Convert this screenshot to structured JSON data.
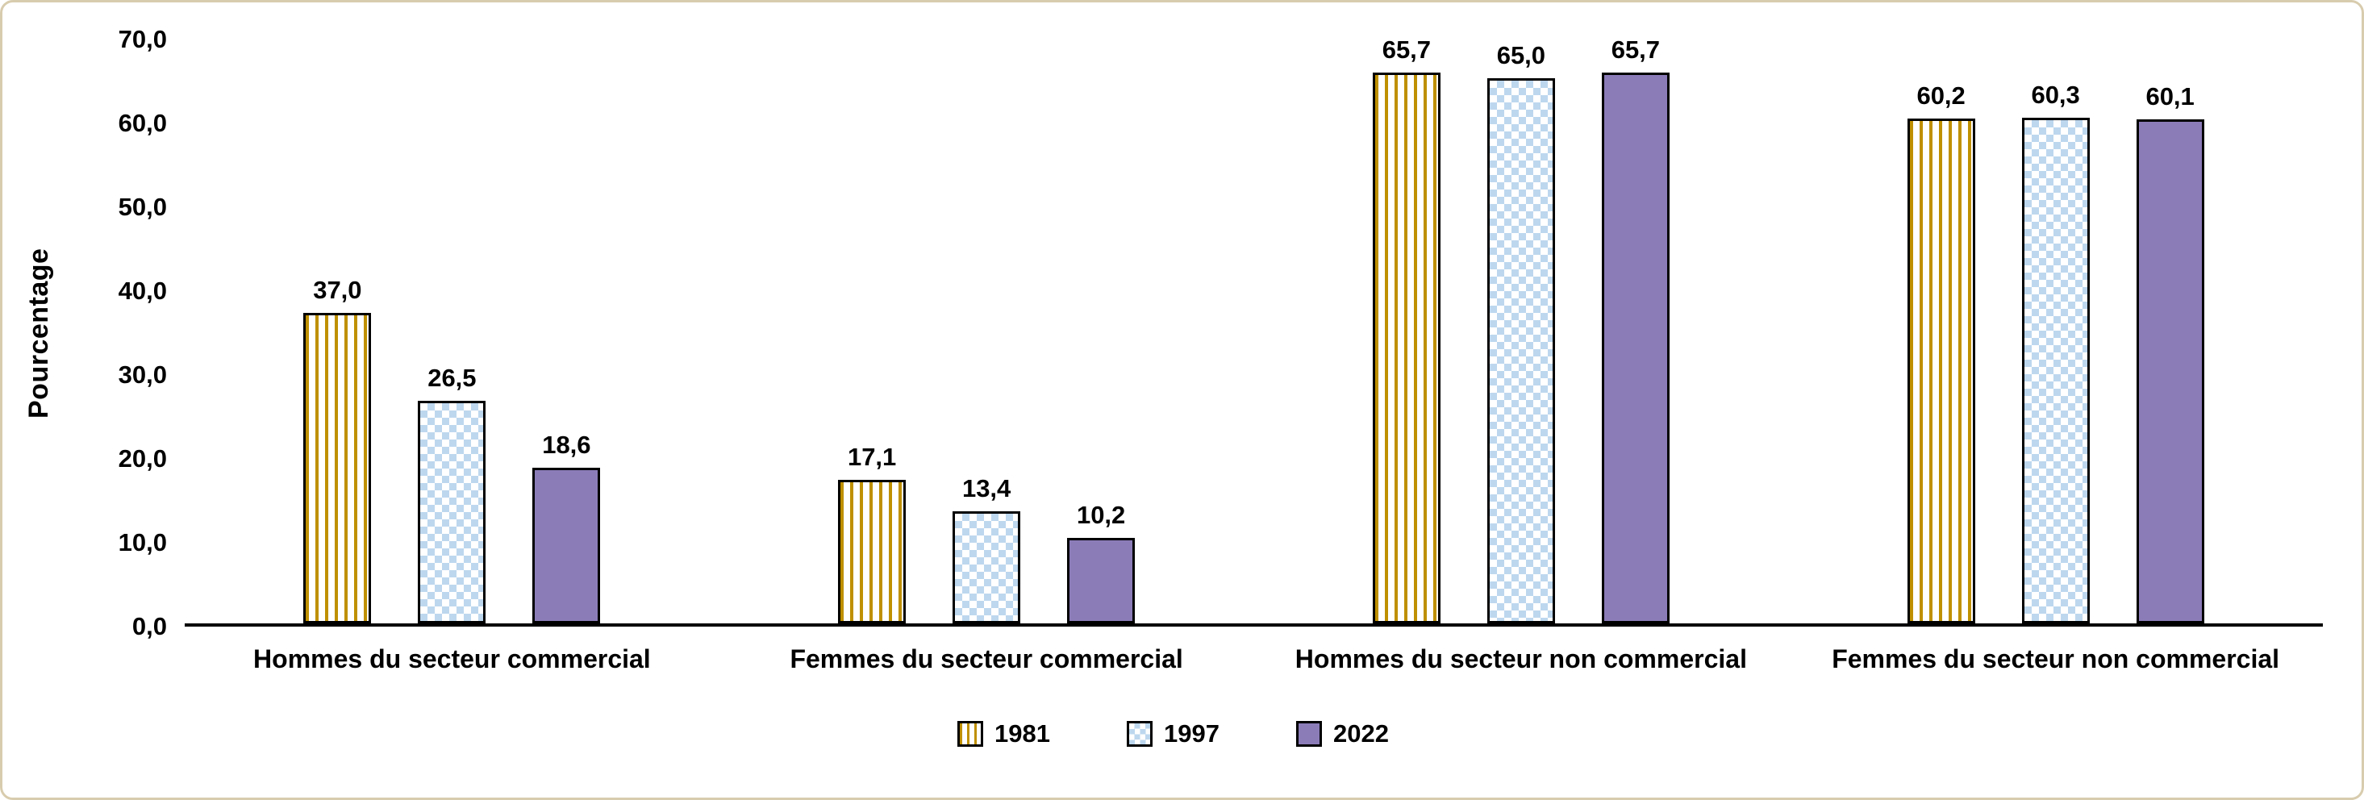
{
  "chart_data": {
    "type": "bar",
    "title": "",
    "xlabel": "",
    "ylabel": "Pourcentage",
    "ylim": [
      0,
      70
    ],
    "grid": false,
    "legend_position": "bottom",
    "decimal_separator": ",",
    "yticks": [
      {
        "value": 0,
        "label": "0,0"
      },
      {
        "value": 10,
        "label": "10,0"
      },
      {
        "value": 20,
        "label": "20,0"
      },
      {
        "value": 30,
        "label": "30,0"
      },
      {
        "value": 40,
        "label": "40,0"
      },
      {
        "value": 50,
        "label": "50,0"
      },
      {
        "value": 60,
        "label": "60,0"
      },
      {
        "value": 70,
        "label": "70,0"
      }
    ],
    "categories": [
      "Hommes du secteur commercial",
      "Femmes du secteur commercial",
      "Hommes du secteur non commercial",
      "Femmes du secteur non commercial"
    ],
    "series": [
      {
        "name": "1981",
        "pattern": "vertical-stripes",
        "color": "#BF9000",
        "values": [
          37.0,
          17.1,
          65.7,
          60.2
        ],
        "labels": [
          "37,0",
          "17,1",
          "65,7",
          "60,2"
        ]
      },
      {
        "name": "1997",
        "pattern": "checkerboard",
        "color": "#BDD7EE",
        "values": [
          26.5,
          13.4,
          65.0,
          60.3
        ],
        "labels": [
          "26,5",
          "13,4",
          "65,0",
          "60,3"
        ]
      },
      {
        "name": "2022",
        "pattern": "solid",
        "color": "#8B7CB8",
        "values": [
          18.6,
          10.2,
          65.7,
          60.1
        ],
        "labels": [
          "18,6",
          "10,2",
          "65,7",
          "60,1"
        ]
      }
    ],
    "colors": {
      "bar_outline": "#000000",
      "axis_line": "#000000",
      "frame_border": "#d8ccae",
      "background": "#ffffff"
    }
  }
}
